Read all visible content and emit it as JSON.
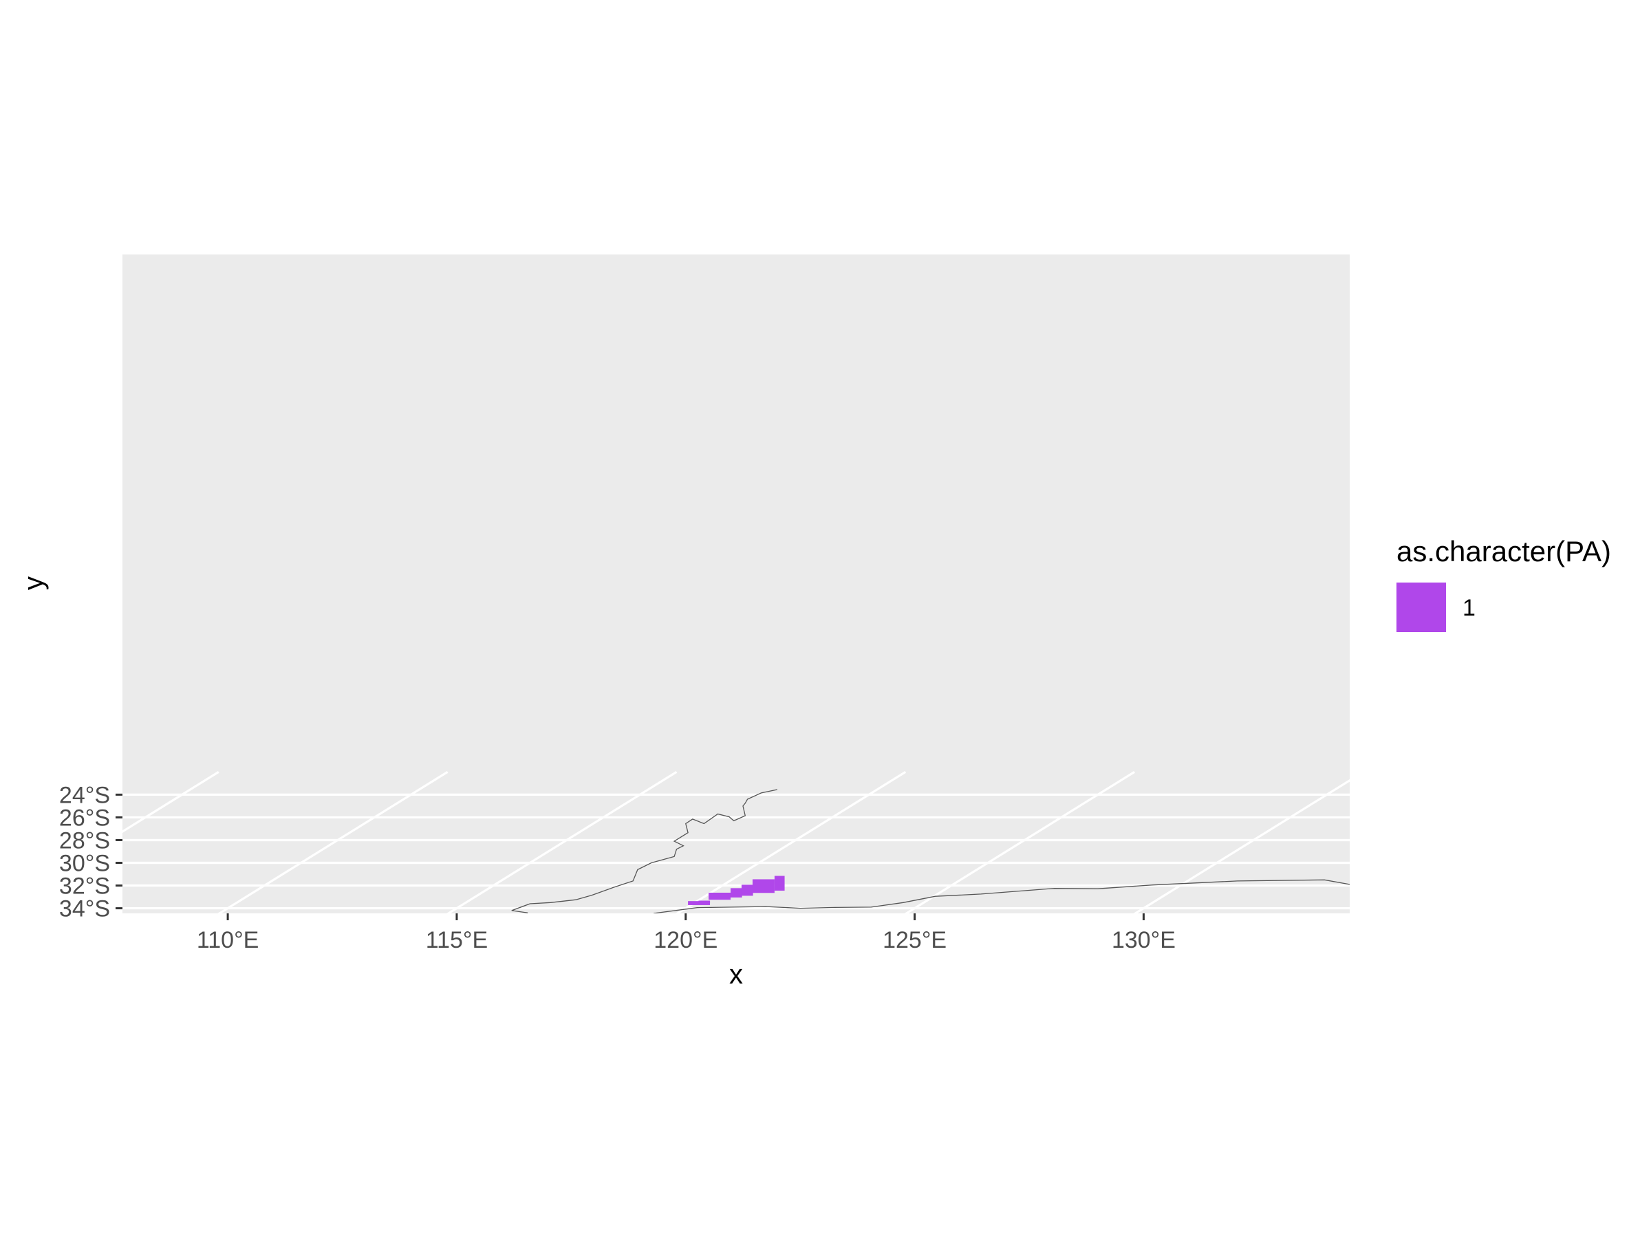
{
  "chart_data": {
    "type": "map",
    "xlabel": "x",
    "ylabel": "y",
    "xlim": [
      107.7,
      134.5
    ],
    "ylim": [
      -34.45,
      23.55
    ],
    "x_ticks": [
      {
        "value": 110,
        "label": "110°E"
      },
      {
        "value": 115,
        "label": "115°E"
      },
      {
        "value": 120,
        "label": "120°E"
      },
      {
        "value": 125,
        "label": "125°E"
      },
      {
        "value": 130,
        "label": "130°E"
      }
    ],
    "y_ticks": [
      {
        "value": -24,
        "label": "24°S"
      },
      {
        "value": -26,
        "label": "26°S"
      },
      {
        "value": -28,
        "label": "28°S"
      },
      {
        "value": -30,
        "label": "30°S"
      },
      {
        "value": -32,
        "label": "32°S"
      },
      {
        "value": -34,
        "label": "34°S"
      }
    ],
    "graticule_meridians": [
      105,
      110,
      115,
      120,
      125,
      130,
      135,
      140
    ],
    "graticule_slope_deg_per_deg": 0.4,
    "grid": true,
    "panel_background": "#ebebeb",
    "grid_color": "#ffffff",
    "coastline_color": "#555555",
    "coastlines": [
      [
        [
          122.0,
          -23.55
        ],
        [
          121.65,
          -23.85
        ],
        [
          121.35,
          -24.4
        ],
        [
          121.3,
          -24.75
        ],
        [
          121.25,
          -25.0
        ],
        [
          121.3,
          -25.85
        ],
        [
          121.05,
          -26.3
        ],
        [
          120.95,
          -25.95
        ],
        [
          120.7,
          -25.7
        ],
        [
          120.4,
          -26.55
        ],
        [
          120.15,
          -26.15
        ],
        [
          120.0,
          -26.55
        ],
        [
          120.05,
          -27.35
        ],
        [
          119.75,
          -28.1
        ],
        [
          119.95,
          -28.5
        ],
        [
          119.8,
          -28.8
        ],
        [
          119.75,
          -29.45
        ],
        [
          119.25,
          -30.0
        ],
        [
          118.95,
          -30.6
        ],
        [
          118.85,
          -31.6
        ],
        [
          118.4,
          -32.2
        ],
        [
          117.95,
          -32.85
        ],
        [
          117.6,
          -33.25
        ],
        [
          117.05,
          -33.5
        ],
        [
          116.6,
          -33.6
        ],
        [
          116.2,
          -34.2
        ],
        [
          116.55,
          -34.4
        ]
      ],
      [
        [
          119.3,
          -34.45
        ],
        [
          120.25,
          -33.95
        ],
        [
          121.75,
          -33.85
        ],
        [
          122.5,
          -34.0
        ],
        [
          123.25,
          -33.93
        ],
        [
          124.05,
          -33.9
        ],
        [
          124.75,
          -33.5
        ],
        [
          125.45,
          -32.95
        ],
        [
          126.45,
          -32.75
        ],
        [
          128.05,
          -32.25
        ],
        [
          129.0,
          -32.28
        ],
        [
          130.2,
          -31.95
        ],
        [
          132.05,
          -31.6
        ],
        [
          133.95,
          -31.5
        ],
        [
          134.5,
          -31.9
        ]
      ]
    ],
    "raster_color": "#b047ea",
    "raster_cells": [
      [
        120.05,
        -33.72,
        0.48,
        0.35
      ],
      [
        120.28,
        -33.55,
        0.25,
        0.22
      ],
      [
        120.5,
        -33.25,
        0.48,
        0.62
      ],
      [
        120.98,
        -33.05,
        0.25,
        0.82
      ],
      [
        121.22,
        -32.9,
        0.25,
        0.97
      ],
      [
        121.46,
        -32.65,
        0.48,
        1.2
      ],
      [
        121.94,
        -32.45,
        0.22,
        1.3
      ]
    ],
    "legend": {
      "title": "as.character(PA)",
      "items": [
        {
          "label": "1",
          "color": "#b047ea"
        }
      ],
      "position": "right"
    }
  }
}
